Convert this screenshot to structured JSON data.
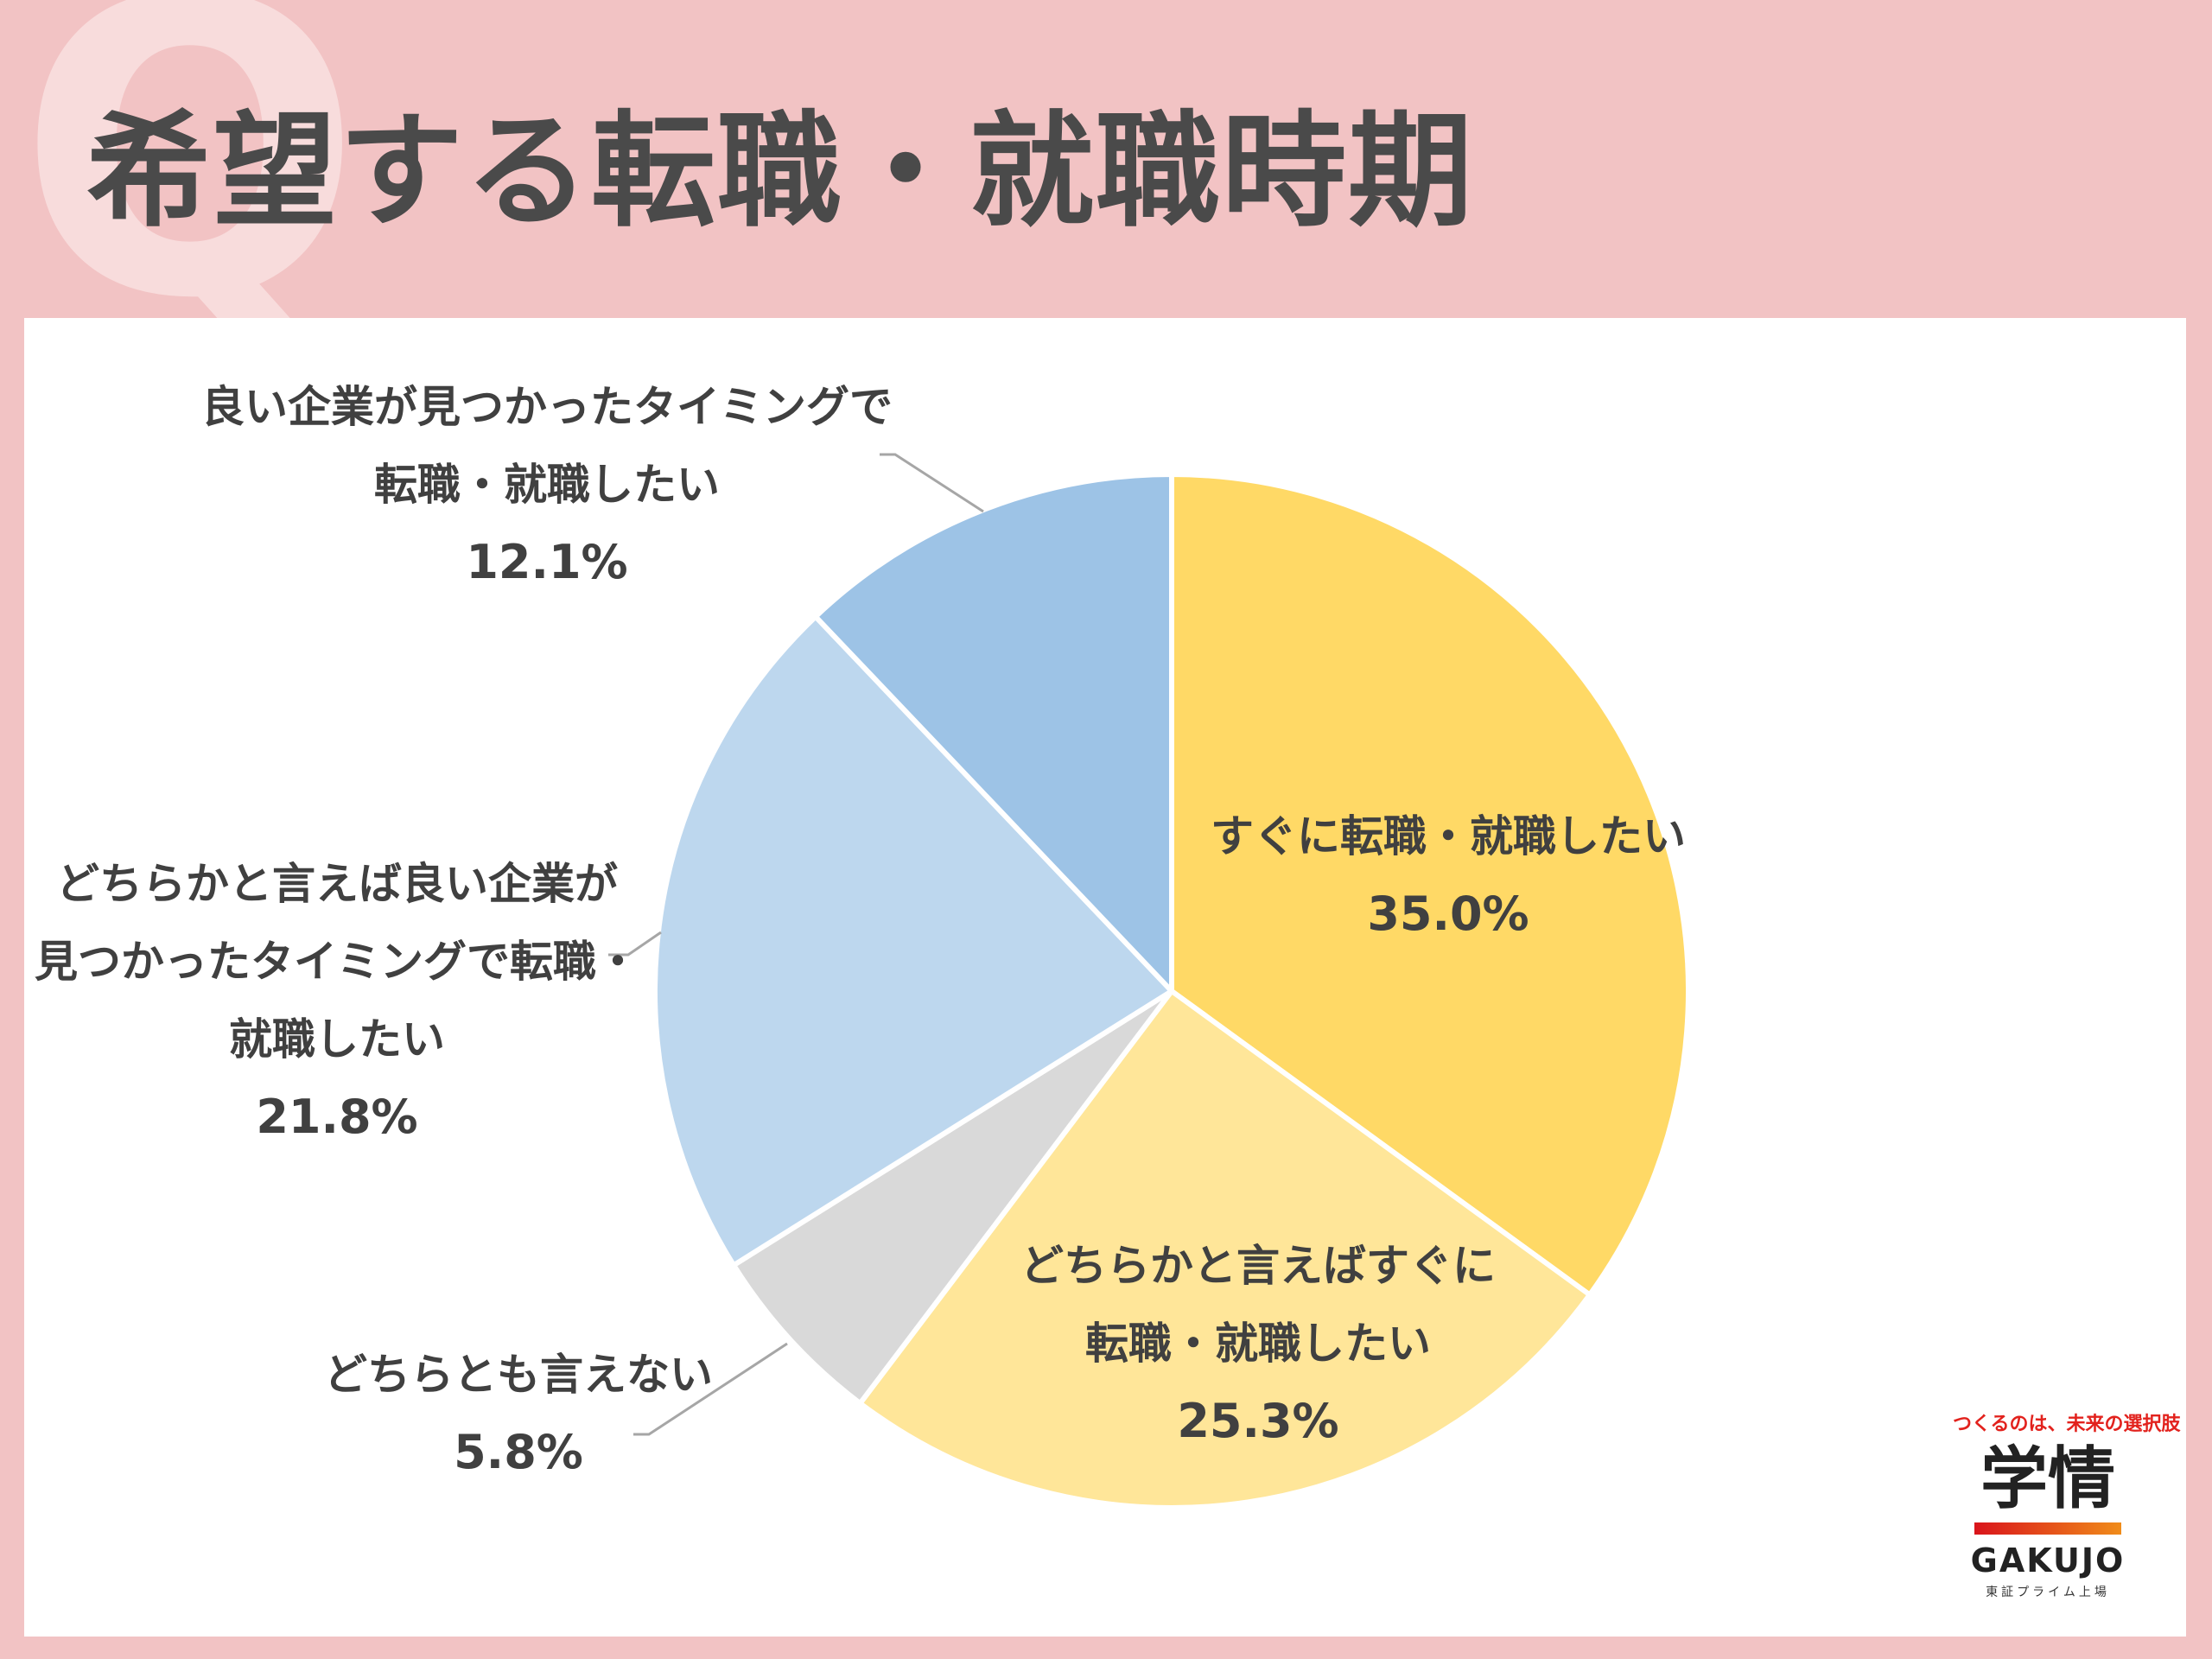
{
  "page": {
    "q_letter": "Q",
    "title": "希望する転職・就職時期"
  },
  "chart_data": {
    "type": "pie",
    "title": "希望する転職・就職時期",
    "start_angle_deg": 0,
    "direction": "clockwise",
    "slices": [
      {
        "lines": [
          "すぐに転職・就職したい"
        ],
        "value": 35.0,
        "percent_label": "35.0%",
        "color": "#ffd966"
      },
      {
        "lines": [
          "どちらかと言えばすぐに",
          "転職・就職したい"
        ],
        "value": 25.3,
        "percent_label": "25.3%",
        "color": "#ffe699"
      },
      {
        "lines": [
          "どちらとも言えない"
        ],
        "value": 5.8,
        "percent_label": "5.8%",
        "color": "#d9d9d9"
      },
      {
        "lines": [
          "どちらかと言えば良い企業が",
          "見つかったタイミングで転職・",
          "就職したい"
        ],
        "value": 21.8,
        "percent_label": "21.8%",
        "color": "#bdd7ee"
      },
      {
        "lines": [
          "良い企業が見つかったタイミングで",
          "転職・就職したい"
        ],
        "value": 12.1,
        "percent_label": "12.1%",
        "color": "#9dc3e6"
      }
    ]
  },
  "brand": {
    "tagline": "つくるのは、未来の選択肢",
    "name_kanji": "学情",
    "name_latin": "GAKUJO",
    "listing": "東証プライム上場"
  }
}
